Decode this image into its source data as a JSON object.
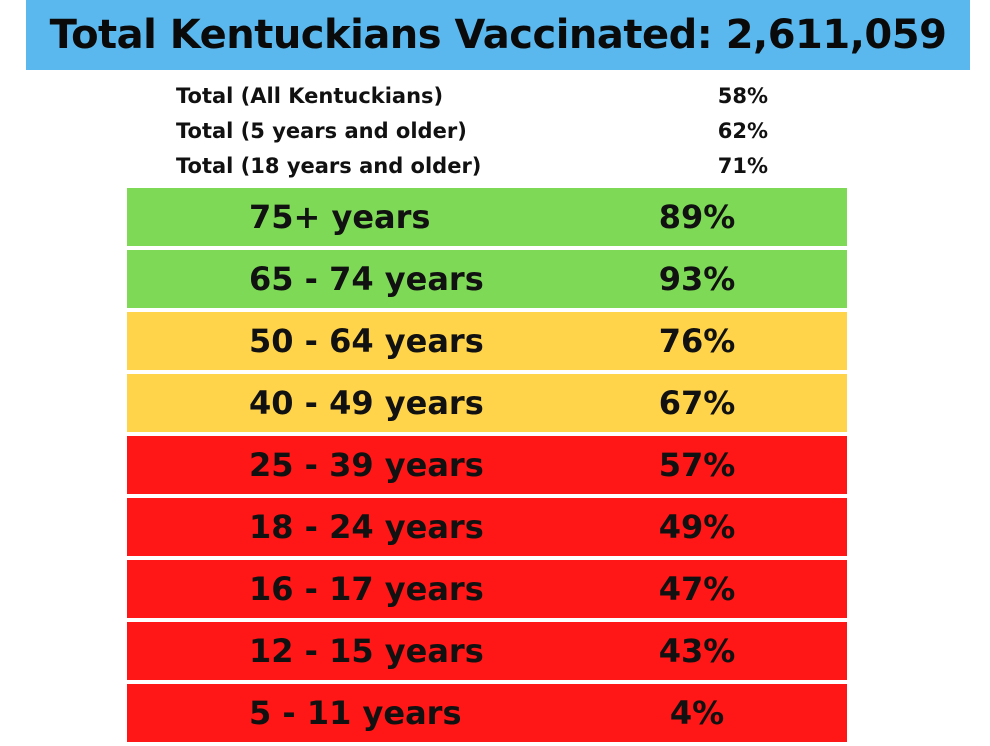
{
  "banner": {
    "title": "Total Kentuckians Vaccinated: 2,611,059",
    "color": "#5bb8ee"
  },
  "summary": [
    {
      "label": "Total (All Kentuckians)",
      "value": "58%"
    },
    {
      "label": "Total (5 years and older)",
      "value": "62%"
    },
    {
      "label": "Total (18 years and older)",
      "value": "71%"
    }
  ],
  "status_colors": {
    "green": "#7ed957",
    "yellow": "#ffd44a",
    "red": "#ff1616"
  },
  "age_groups": [
    {
      "label": "75+  years",
      "value": "89%",
      "status": "green"
    },
    {
      "label": "65 - 74 years",
      "value": "93%",
      "status": "green"
    },
    {
      "label": "50 - 64 years",
      "value": "76%",
      "status": "yellow"
    },
    {
      "label": "40 - 49 years",
      "value": "67%",
      "status": "yellow"
    },
    {
      "label": "25 - 39 years",
      "value": "57%",
      "status": "red"
    },
    {
      "label": "18 - 24 years",
      "value": "49%",
      "status": "red"
    },
    {
      "label": "16 - 17 years",
      "value": "47%",
      "status": "red"
    },
    {
      "label": "12 - 15 years",
      "value": "43%",
      "status": "red"
    },
    {
      "label": "5 - 11 years",
      "value": "4%",
      "status": "red"
    }
  ]
}
